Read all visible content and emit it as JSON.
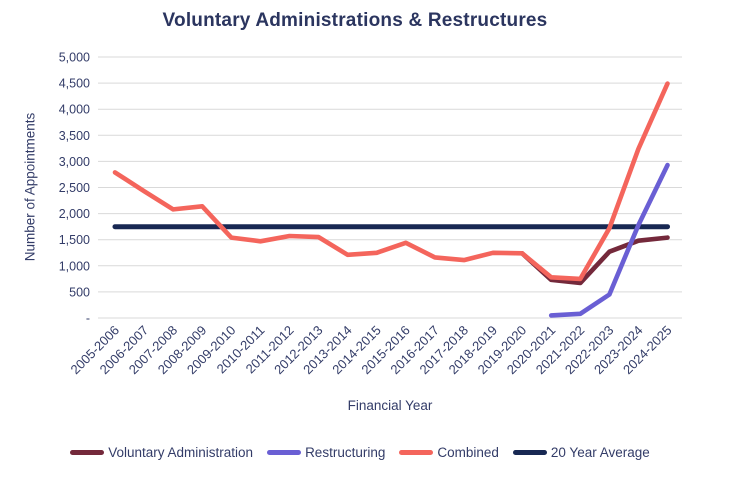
{
  "chart_data": {
    "type": "line",
    "title": "Voluntary Administrations & Restructures",
    "xlabel": "Financial Year",
    "ylabel": "Number of Appointments",
    "ylim": [
      0,
      5000
    ],
    "grid": true,
    "legend_position": "bottom",
    "y_ticks": [
      {
        "value": 0,
        "label": "-"
      },
      {
        "value": 500,
        "label": "500"
      },
      {
        "value": 1000,
        "label": "1,000"
      },
      {
        "value": 1500,
        "label": "1,500"
      },
      {
        "value": 2000,
        "label": "2,000"
      },
      {
        "value": 2500,
        "label": "2,500"
      },
      {
        "value": 3000,
        "label": "3,000"
      },
      {
        "value": 3500,
        "label": "3,500"
      },
      {
        "value": 4000,
        "label": "4,000"
      },
      {
        "value": 4500,
        "label": "4,500"
      },
      {
        "value": 5000,
        "label": "5,000"
      }
    ],
    "categories": [
      "2005-2006",
      "2006-2007",
      "2007-2008",
      "2008-2009",
      "2009-2010",
      "2010-2011",
      "2011-2012",
      "2012-2013",
      "2013-2014",
      "2014-2015",
      "2015-2016",
      "2016-2017",
      "2017-2018",
      "2018-2019",
      "2019-2020",
      "2020-2021",
      "2021-2022",
      "2022-2023",
      "2023-2024",
      "2024-2025"
    ],
    "series": [
      {
        "name": "Voluntary Administration",
        "color": "#74293b",
        "values": [
          null,
          null,
          null,
          null,
          null,
          null,
          null,
          null,
          null,
          null,
          null,
          null,
          null,
          null,
          1240,
          730,
          670,
          1270,
          1480,
          1540
        ]
      },
      {
        "name": "Restructuring",
        "color": "#6a5fd4",
        "values": [
          null,
          null,
          null,
          null,
          null,
          null,
          null,
          null,
          null,
          null,
          null,
          null,
          null,
          null,
          null,
          50,
          80,
          450,
          1780,
          2930
        ]
      },
      {
        "name": "Combined",
        "color": "#f4655c",
        "values": [
          2790,
          2430,
          2080,
          2140,
          1540,
          1470,
          1570,
          1550,
          1210,
          1250,
          1440,
          1160,
          1110,
          1250,
          1240,
          780,
          750,
          1720,
          3240,
          4490
        ]
      },
      {
        "name": "20 Year Average",
        "color": "#182853",
        "values": [
          1750,
          1750,
          1750,
          1750,
          1750,
          1750,
          1750,
          1750,
          1750,
          1750,
          1750,
          1750,
          1750,
          1750,
          1750,
          1750,
          1750,
          1750,
          1750,
          1750
        ]
      }
    ],
    "draw_order": [
      "Voluntary Administration",
      "20 Year Average",
      "Combined",
      "Restructuring"
    ],
    "colors": {
      "grid": "#d9d9d9",
      "background": "#ffffff",
      "text": "#333c68",
      "title": "#2b355f"
    }
  }
}
